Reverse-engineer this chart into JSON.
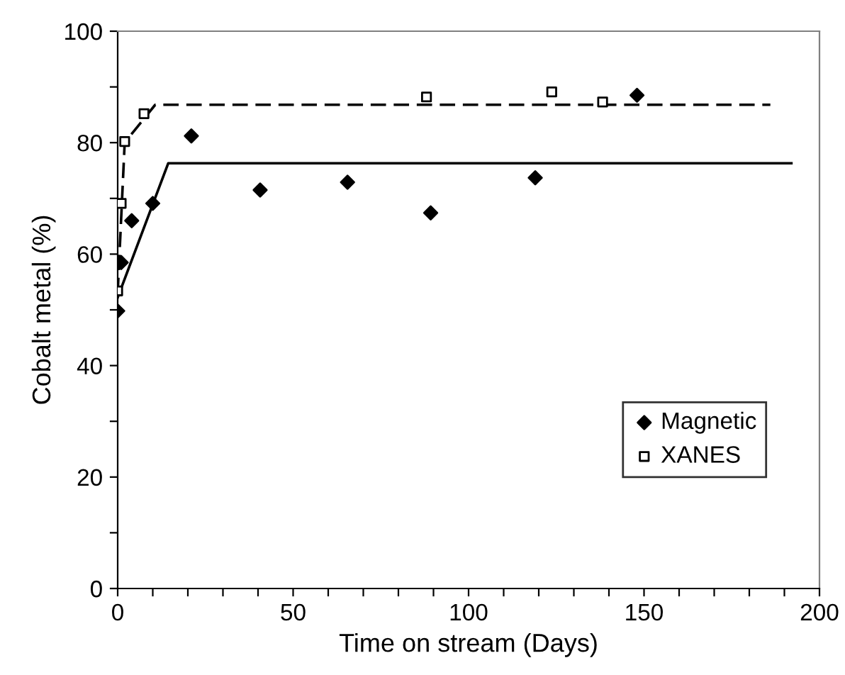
{
  "chart_data": {
    "type": "scatter",
    "xlabel": "Time on stream (Days)",
    "ylabel": "Cobalt metal (%)",
    "series": [
      {
        "name": "Magnetic",
        "marker": "diamond",
        "color": "#000000",
        "x": [
          0,
          1,
          4,
          10,
          21,
          40.6,
          65.5,
          89.2,
          119,
          148
        ],
        "values": [
          49.8,
          58.5,
          66,
          69.1,
          81.2,
          71.5,
          72.9,
          67.4,
          73.7,
          88.5
        ]
      },
      {
        "name": "XANES",
        "marker": "square",
        "color": "#000000",
        "x": [
          0,
          1,
          2,
          7.5,
          88,
          123.7,
          138.2
        ],
        "values": [
          53.4,
          69.1,
          80.2,
          85.2,
          88.2,
          89.1,
          87.3
        ]
      },
      {
        "type": "line",
        "line_style": "solid",
        "color": "#000000",
        "x": [
          0,
          14.4,
          192
        ],
        "values": [
          52.2,
          76.3,
          76.3
        ]
      },
      {
        "type": "line",
        "line_style": "dashed",
        "color": "#000000",
        "x": [
          0,
          2,
          10.7,
          186
        ],
        "values": [
          53,
          80,
          86.8,
          86.8
        ]
      }
    ],
    "xlim": [
      0,
      200
    ],
    "ylim": [
      0,
      100
    ],
    "xticks": [
      0,
      {
        "value": 10,
        "label": null
      },
      {
        "value": 20,
        "label": null
      },
      {
        "value": 30,
        "label": null
      },
      {
        "value": 40,
        "label": null
      },
      50,
      {
        "value": 60,
        "label": null
      },
      {
        "value": 70,
        "label": null
      },
      {
        "value": 80,
        "label": null
      },
      {
        "value": 90,
        "label": null
      },
      100,
      {
        "value": 110,
        "label": null
      },
      {
        "value": 120,
        "label": null
      },
      {
        "value": 130,
        "label": null
      },
      {
        "value": 140,
        "label": null
      },
      150,
      {
        "value": 160,
        "label": null
      },
      {
        "value": 170,
        "label": null
      },
      {
        "value": 180,
        "label": null
      },
      {
        "value": 190,
        "label": null
      },
      200
    ],
    "yticks": [
      0,
      {
        "value": 10,
        "label": null
      },
      20,
      {
        "value": 30,
        "label": null
      },
      40,
      {
        "value": 50,
        "label": null
      },
      60,
      {
        "value": 70,
        "label": null
      },
      80,
      {
        "value": 90,
        "label": null
      },
      100
    ],
    "grid": false,
    "legend": "bottom right"
  }
}
